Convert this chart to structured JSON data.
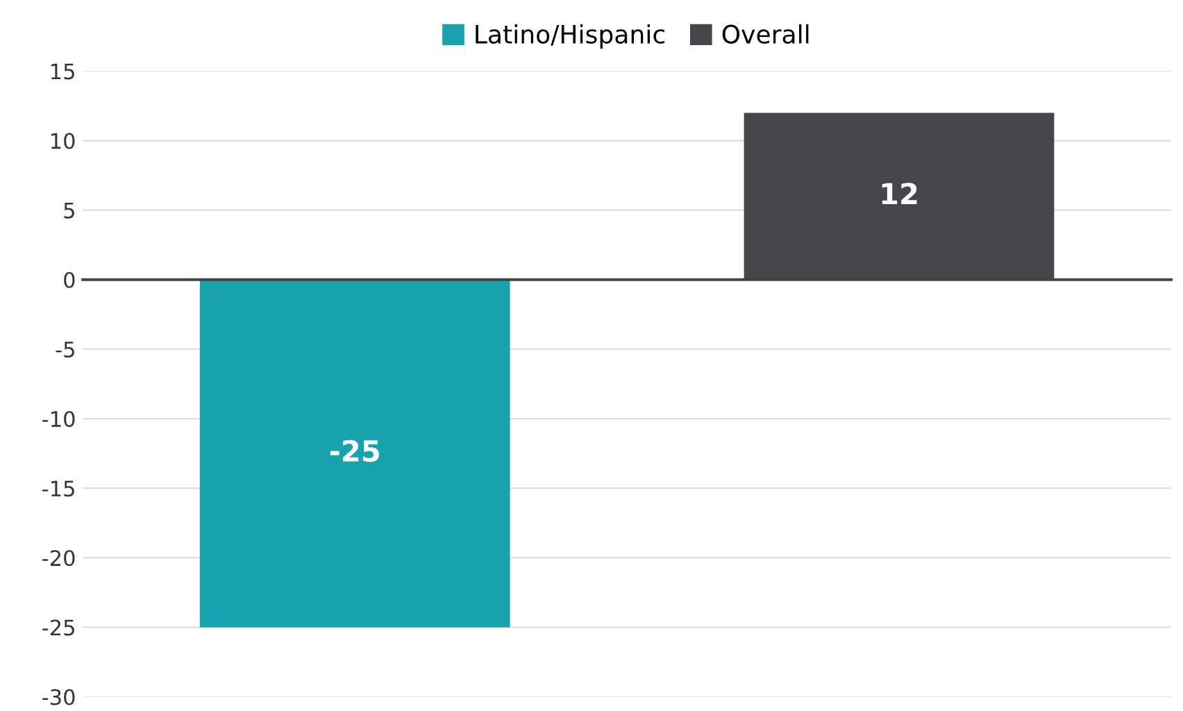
{
  "chart_data": {
    "type": "bar",
    "categories": [
      null,
      null
    ],
    "series": [
      {
        "name": "Latino/Hispanic",
        "color": "#17a2ad",
        "values": [
          -25,
          null
        ]
      },
      {
        "name": "Overall",
        "color": "#45464b",
        "values": [
          null,
          12
        ]
      }
    ],
    "ylim": [
      -30,
      15
    ],
    "yticks": [
      -30,
      -25,
      -20,
      -15,
      -10,
      -5,
      0,
      5,
      10,
      15
    ],
    "grid": "y",
    "legend": "top",
    "data_labels": true
  }
}
